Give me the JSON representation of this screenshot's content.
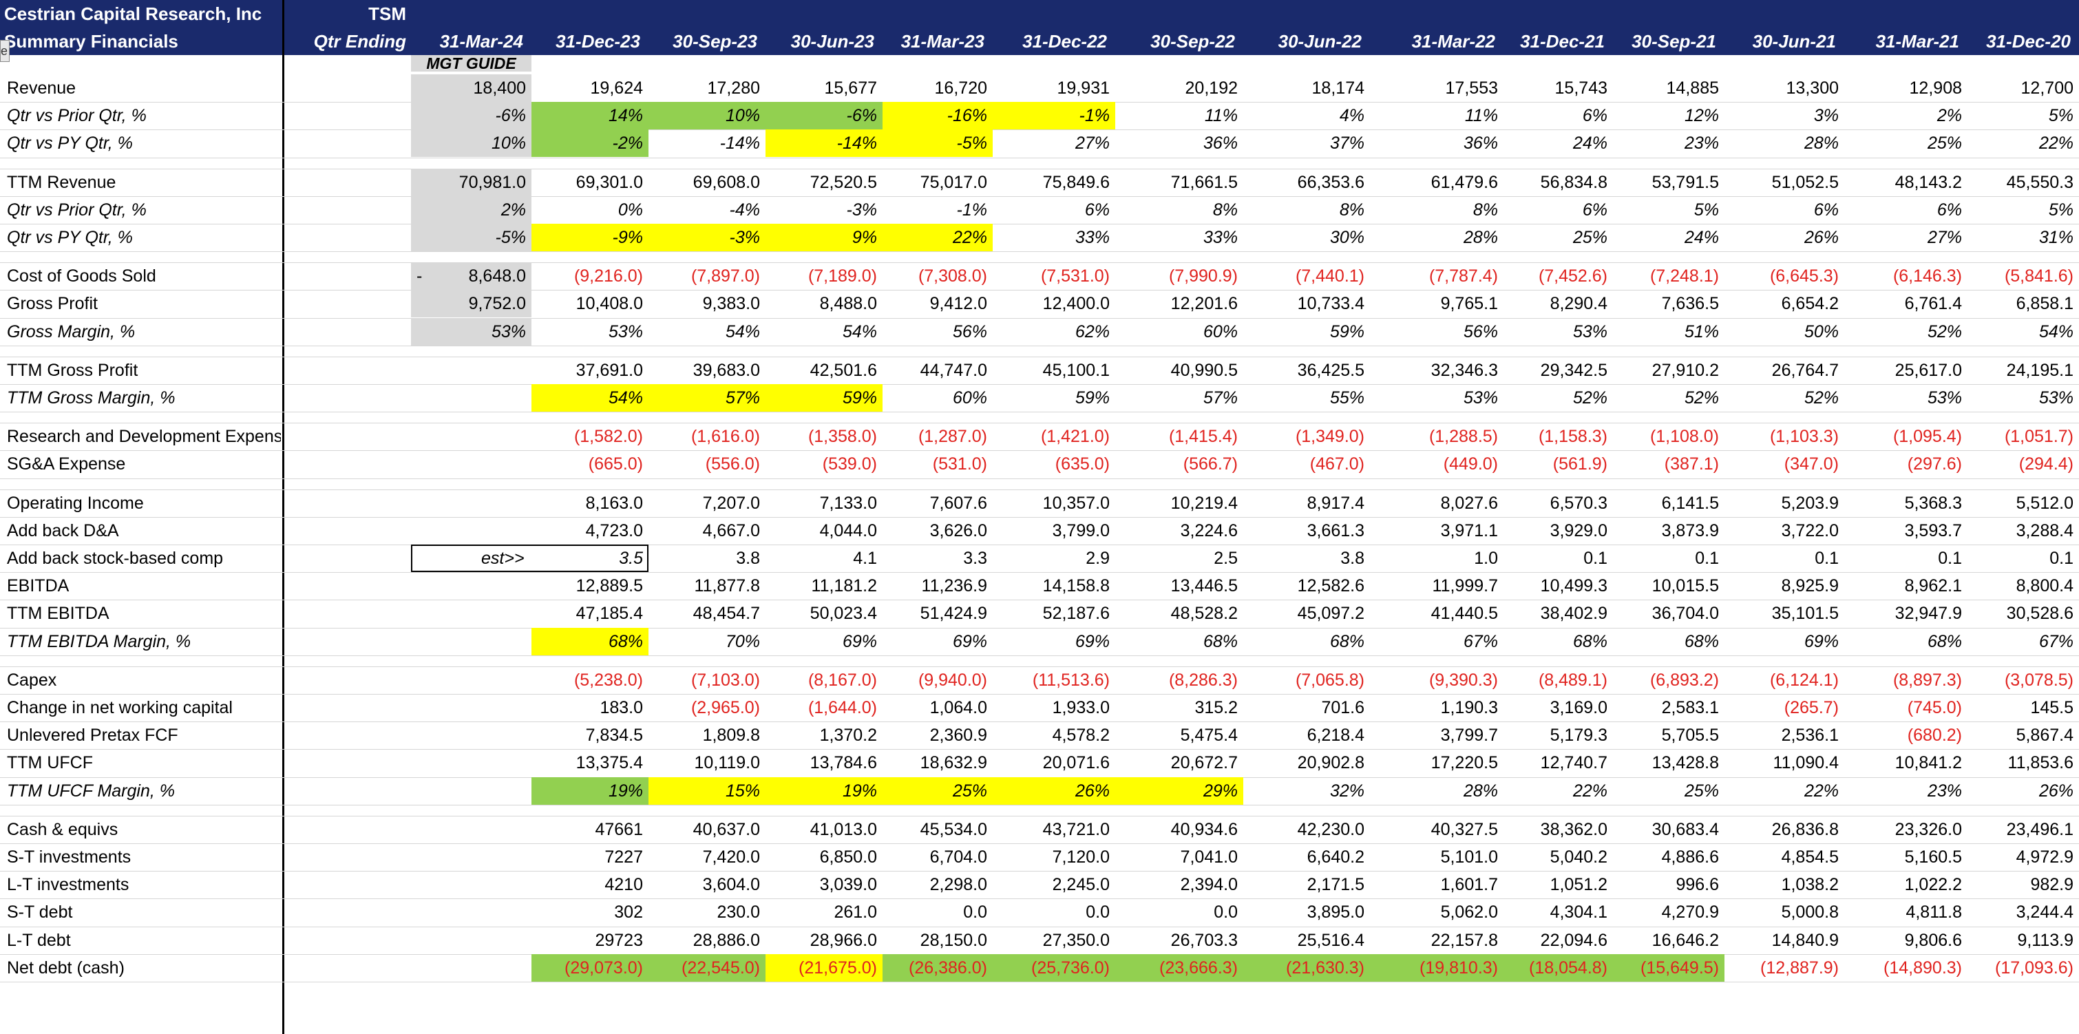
{
  "header": {
    "company": "Cestrian Capital Research, Inc",
    "subtitle": "Summary Financials",
    "ticker": "TSM",
    "period_label": "Qtr Ending",
    "guide_label": "MGT GUIDE",
    "tab_stub": "e",
    "dates": [
      "31-Mar-24",
      "31-Dec-23",
      "30-Sep-23",
      "30-Jun-23",
      "31-Mar-23",
      "31-Dec-22",
      "30-Sep-22",
      "30-Jun-22",
      "31-Mar-22",
      "31-Dec-21",
      "30-Sep-21",
      "30-Jun-21",
      "31-Mar-21",
      "31-Dec-20"
    ]
  },
  "colors": {
    "header_bg": "#1a2a6c",
    "green": "#92d050",
    "yellow": "#ffff00",
    "grey": "#d9d9d9",
    "negative": "#e0231f"
  },
  "rows": [
    {
      "label": "Revenue",
      "italic": false,
      "values": [
        "18,400",
        "19,624",
        "17,280",
        "15,677",
        "16,720",
        "19,931",
        "20,192",
        "18,174",
        "17,553",
        "15,743",
        "14,885",
        "13,300",
        "12,908",
        "12,700"
      ],
      "fills": [
        "g",
        "",
        "",
        "",
        "",
        "",
        "",
        "",
        "",
        "",
        "",
        "",
        "",
        ""
      ]
    },
    {
      "label": "Qtr vs Prior Qtr, %",
      "italic": true,
      "values": [
        "-6%",
        "14%",
        "10%",
        "-6%",
        "-16%",
        "-1%",
        "11%",
        "4%",
        "11%",
        "6%",
        "12%",
        "3%",
        "2%",
        "5%"
      ],
      "fills": [
        "g",
        "G",
        "G",
        "G",
        "Y",
        "Y",
        "",
        "",
        "",
        "",
        "",
        "",
        "",
        ""
      ]
    },
    {
      "label": "Qtr vs PY Qtr, %",
      "italic": true,
      "values": [
        "10%",
        "-2%",
        "-14%",
        "-14%",
        "-5%",
        "27%",
        "36%",
        "37%",
        "36%",
        "24%",
        "23%",
        "28%",
        "25%",
        "22%"
      ],
      "fills": [
        "g",
        "G",
        "",
        "Y",
        "Y",
        "",
        "",
        "",
        "",
        "",
        "",
        "",
        "",
        ""
      ]
    },
    {
      "spacer": true
    },
    {
      "label": "TTM Revenue",
      "italic": false,
      "values": [
        "70,981.0",
        "69,301.0",
        "69,608.0",
        "72,520.5",
        "75,017.0",
        "75,849.6",
        "71,661.5",
        "66,353.6",
        "61,479.6",
        "56,834.8",
        "53,791.5",
        "51,052.5",
        "48,143.2",
        "45,550.3"
      ],
      "fills": [
        "g",
        "",
        "",
        "",
        "",
        "",
        "",
        "",
        "",
        "",
        "",
        "",
        "",
        ""
      ]
    },
    {
      "label": "Qtr vs Prior Qtr, %",
      "italic": true,
      "values": [
        "2%",
        "0%",
        "-4%",
        "-3%",
        "-1%",
        "6%",
        "8%",
        "8%",
        "8%",
        "6%",
        "5%",
        "6%",
        "6%",
        "5%"
      ],
      "fills": [
        "g",
        "",
        "",
        "",
        "",
        "",
        "",
        "",
        "",
        "",
        "",
        "",
        "",
        ""
      ]
    },
    {
      "label": "Qtr vs PY Qtr, %",
      "italic": true,
      "values": [
        "-5%",
        "-9%",
        "-3%",
        "9%",
        "22%",
        "33%",
        "33%",
        "30%",
        "28%",
        "25%",
        "24%",
        "26%",
        "27%",
        "31%"
      ],
      "fills": [
        "g",
        "Y",
        "Y",
        "Y",
        "Y",
        "",
        "",
        "",
        "",
        "",
        "",
        "",
        "",
        ""
      ]
    },
    {
      "spacer": true
    },
    {
      "label": "Cost of Goods Sold",
      "italic": false,
      "prefix": "-",
      "values": [
        "8,648.0",
        "(9,216.0)",
        "(7,897.0)",
        "(7,189.0)",
        "(7,308.0)",
        "(7,531.0)",
        "(7,990.9)",
        "(7,440.1)",
        "(7,787.4)",
        "(7,452.6)",
        "(7,248.1)",
        "(6,645.3)",
        "(6,146.3)",
        "(5,841.6)"
      ],
      "fills": [
        "g",
        "",
        "",
        "",
        "",
        "",
        "",
        "",
        "",
        "",
        "",
        "",
        "",
        ""
      ]
    },
    {
      "label": "Gross Profit",
      "italic": false,
      "values": [
        "9,752.0",
        "10,408.0",
        "9,383.0",
        "8,488.0",
        "9,412.0",
        "12,400.0",
        "12,201.6",
        "10,733.4",
        "9,765.1",
        "8,290.4",
        "7,636.5",
        "6,654.2",
        "6,761.4",
        "6,858.1"
      ],
      "fills": [
        "g",
        "",
        "",
        "",
        "",
        "",
        "",
        "",
        "",
        "",
        "",
        "",
        "",
        ""
      ]
    },
    {
      "label": "Gross Margin, %",
      "italic": true,
      "values": [
        "53%",
        "53%",
        "54%",
        "54%",
        "56%",
        "62%",
        "60%",
        "59%",
        "56%",
        "53%",
        "51%",
        "50%",
        "52%",
        "54%"
      ],
      "fills": [
        "g",
        "",
        "",
        "",
        "",
        "",
        "",
        "",
        "",
        "",
        "",
        "",
        "",
        ""
      ]
    },
    {
      "spacer": true
    },
    {
      "label": "TTM Gross Profit",
      "italic": false,
      "values": [
        "",
        "37,691.0",
        "39,683.0",
        "42,501.6",
        "44,747.0",
        "45,100.1",
        "40,990.5",
        "36,425.5",
        "32,346.3",
        "29,342.5",
        "27,910.2",
        "26,764.7",
        "25,617.0",
        "24,195.1"
      ],
      "fills": [
        "",
        "",
        "",
        "",
        "",
        "",
        "",
        "",
        "",
        "",
        "",
        "",
        "",
        ""
      ]
    },
    {
      "label": "TTM Gross Margin, %",
      "italic": true,
      "values": [
        "",
        "54%",
        "57%",
        "59%",
        "60%",
        "59%",
        "57%",
        "55%",
        "53%",
        "52%",
        "52%",
        "52%",
        "53%",
        "53%"
      ],
      "fills": [
        "",
        "Y",
        "Y",
        "Y",
        "",
        "",
        "",
        "",
        "",
        "",
        "",
        "",
        "",
        ""
      ]
    },
    {
      "spacer": true
    },
    {
      "label": "Research and Development Expense",
      "italic": false,
      "values": [
        "",
        "(1,582.0)",
        "(1,616.0)",
        "(1,358.0)",
        "(1,287.0)",
        "(1,421.0)",
        "(1,415.4)",
        "(1,349.0)",
        "(1,288.5)",
        "(1,158.3)",
        "(1,108.0)",
        "(1,103.3)",
        "(1,095.4)",
        "(1,051.7)"
      ],
      "fills": [
        "",
        "",
        "",
        "",
        "",
        "",
        "",
        "",
        "",
        "",
        "",
        "",
        "",
        ""
      ]
    },
    {
      "label": "SG&A Expense",
      "italic": false,
      "values": [
        "",
        "(665.0)",
        "(556.0)",
        "(539.0)",
        "(531.0)",
        "(635.0)",
        "(566.7)",
        "(467.0)",
        "(449.0)",
        "(561.9)",
        "(387.1)",
        "(347.0)",
        "(297.6)",
        "(294.4)"
      ],
      "fills": [
        "",
        "",
        "",
        "",
        "",
        "",
        "",
        "",
        "",
        "",
        "",
        "",
        "",
        ""
      ]
    },
    {
      "spacer": true
    },
    {
      "label": "Operating Income",
      "italic": false,
      "values": [
        "",
        "8,163.0",
        "7,207.0",
        "7,133.0",
        "7,607.6",
        "10,357.0",
        "10,219.4",
        "8,917.4",
        "8,027.6",
        "6,570.3",
        "6,141.5",
        "5,203.9",
        "5,368.3",
        "5,512.0"
      ],
      "fills": [
        "",
        "",
        "",
        "",
        "",
        "",
        "",
        "",
        "",
        "",
        "",
        "",
        "",
        ""
      ]
    },
    {
      "label": "Add back D&A",
      "italic": false,
      "values": [
        "",
        "4,723.0",
        "4,667.0",
        "4,044.0",
        "3,626.0",
        "3,799.0",
        "3,224.6",
        "3,661.3",
        "3,971.1",
        "3,929.0",
        "3,873.9",
        "3,722.0",
        "3,593.7",
        "3,288.4"
      ],
      "fills": [
        "",
        "",
        "",
        "",
        "",
        "",
        "",
        "",
        "",
        "",
        "",
        "",
        "",
        ""
      ]
    },
    {
      "label": "Add back stock-based comp",
      "italic": false,
      "est": "est>>",
      "values": [
        "",
        "3.5",
        "3.8",
        "4.1",
        "3.3",
        "2.9",
        "2.5",
        "3.8",
        "1.0",
        "0.1",
        "0.1",
        "0.1",
        "0.1",
        "0.1"
      ],
      "fills": [
        "",
        "",
        "",
        "",
        "",
        "",
        "",
        "",
        "",
        "",
        "",
        "",
        "",
        ""
      ]
    },
    {
      "label": "EBITDA",
      "italic": false,
      "values": [
        "",
        "12,889.5",
        "11,877.8",
        "11,181.2",
        "11,236.9",
        "14,158.8",
        "13,446.5",
        "12,582.6",
        "11,999.7",
        "10,499.3",
        "10,015.5",
        "8,925.9",
        "8,962.1",
        "8,800.4"
      ],
      "fills": [
        "",
        "",
        "",
        "",
        "",
        "",
        "",
        "",
        "",
        "",
        "",
        "",
        "",
        ""
      ]
    },
    {
      "label": "TTM EBITDA",
      "italic": false,
      "values": [
        "",
        "47,185.4",
        "48,454.7",
        "50,023.4",
        "51,424.9",
        "52,187.6",
        "48,528.2",
        "45,097.2",
        "41,440.5",
        "38,402.9",
        "36,704.0",
        "35,101.5",
        "32,947.9",
        "30,528.6"
      ],
      "fills": [
        "",
        "",
        "",
        "",
        "",
        "",
        "",
        "",
        "",
        "",
        "",
        "",
        "",
        ""
      ]
    },
    {
      "label": "TTM EBITDA Margin, %",
      "italic": true,
      "values": [
        "",
        "68%",
        "70%",
        "69%",
        "69%",
        "69%",
        "68%",
        "68%",
        "67%",
        "68%",
        "68%",
        "69%",
        "68%",
        "67%"
      ],
      "fills": [
        "",
        "Y",
        "",
        "",
        "",
        "",
        "",
        "",
        "",
        "",
        "",
        "",
        "",
        ""
      ]
    },
    {
      "spacer": true
    },
    {
      "label": "Capex",
      "italic": false,
      "values": [
        "",
        "(5,238.0)",
        "(7,103.0)",
        "(8,167.0)",
        "(9,940.0)",
        "(11,513.6)",
        "(8,286.3)",
        "(7,065.8)",
        "(9,390.3)",
        "(8,489.1)",
        "(6,893.2)",
        "(6,124.1)",
        "(8,897.3)",
        "(3,078.5)"
      ],
      "fills": [
        "",
        "",
        "",
        "",
        "",
        "",
        "",
        "",
        "",
        "",
        "",
        "",
        "",
        ""
      ]
    },
    {
      "label": "Change in net working capital",
      "italic": false,
      "values": [
        "",
        "183.0",
        "(2,965.0)",
        "(1,644.0)",
        "1,064.0",
        "1,933.0",
        "315.2",
        "701.6",
        "1,190.3",
        "3,169.0",
        "2,583.1",
        "(265.7)",
        "(745.0)",
        "145.5"
      ],
      "fills": [
        "",
        "",
        "",
        "",
        "",
        "",
        "",
        "",
        "",
        "",
        "",
        "",
        "",
        ""
      ]
    },
    {
      "label": "Unlevered Pretax FCF",
      "italic": false,
      "values": [
        "",
        "7,834.5",
        "1,809.8",
        "1,370.2",
        "2,360.9",
        "4,578.2",
        "5,475.4",
        "6,218.4",
        "3,799.7",
        "5,179.3",
        "5,705.5",
        "2,536.1",
        "(680.2)",
        "5,867.4"
      ],
      "fills": [
        "",
        "",
        "",
        "",
        "",
        "",
        "",
        "",
        "",
        "",
        "",
        "",
        "",
        ""
      ]
    },
    {
      "label": "TTM UFCF",
      "italic": false,
      "values": [
        "",
        "13,375.4",
        "10,119.0",
        "13,784.6",
        "18,632.9",
        "20,071.6",
        "20,672.7",
        "20,902.8",
        "17,220.5",
        "12,740.7",
        "13,428.8",
        "11,090.4",
        "10,841.2",
        "11,853.6"
      ],
      "fills": [
        "",
        "",
        "",
        "",
        "",
        "",
        "",
        "",
        "",
        "",
        "",
        "",
        "",
        ""
      ]
    },
    {
      "label": "TTM UFCF Margin, %",
      "italic": true,
      "values": [
        "",
        "19%",
        "15%",
        "19%",
        "25%",
        "26%",
        "29%",
        "32%",
        "28%",
        "22%",
        "25%",
        "22%",
        "23%",
        "26%"
      ],
      "fills": [
        "",
        "G",
        "Y",
        "Y",
        "Y",
        "Y",
        "Y",
        "",
        "",
        "",
        "",
        "",
        "",
        ""
      ]
    },
    {
      "spacer": true
    },
    {
      "label": "Cash & equivs",
      "italic": false,
      "values": [
        "",
        "47661",
        "40,637.0",
        "41,013.0",
        "45,534.0",
        "43,721.0",
        "40,934.6",
        "42,230.0",
        "40,327.5",
        "38,362.0",
        "30,683.4",
        "26,836.8",
        "23,326.0",
        "23,496.1"
      ],
      "fills": [
        "",
        "",
        "",
        "",
        "",
        "",
        "",
        "",
        "",
        "",
        "",
        "",
        "",
        ""
      ]
    },
    {
      "label": "S-T investments",
      "italic": false,
      "values": [
        "",
        "7227",
        "7,420.0",
        "6,850.0",
        "6,704.0",
        "7,120.0",
        "7,041.0",
        "6,640.2",
        "5,101.0",
        "5,040.2",
        "4,886.6",
        "4,854.5",
        "5,160.5",
        "4,972.9"
      ],
      "fills": [
        "",
        "",
        "",
        "",
        "",
        "",
        "",
        "",
        "",
        "",
        "",
        "",
        "",
        ""
      ]
    },
    {
      "label": "L-T investments",
      "italic": false,
      "values": [
        "",
        "4210",
        "3,604.0",
        "3,039.0",
        "2,298.0",
        "2,245.0",
        "2,394.0",
        "2,171.5",
        "1,601.7",
        "1,051.2",
        "996.6",
        "1,038.2",
        "1,022.2",
        "982.9"
      ],
      "fills": [
        "",
        "",
        "",
        "",
        "",
        "",
        "",
        "",
        "",
        "",
        "",
        "",
        "",
        ""
      ]
    },
    {
      "label": "S-T debt",
      "italic": false,
      "values": [
        "",
        "302",
        "230.0",
        "261.0",
        "0.0",
        "0.0",
        "0.0",
        "3,895.0",
        "5,062.0",
        "4,304.1",
        "4,270.9",
        "5,000.8",
        "4,811.8",
        "3,244.4"
      ],
      "fills": [
        "",
        "",
        "",
        "",
        "",
        "",
        "",
        "",
        "",
        "",
        "",
        "",
        "",
        ""
      ]
    },
    {
      "label": "L-T debt",
      "italic": false,
      "values": [
        "",
        "29723",
        "28,886.0",
        "28,966.0",
        "28,150.0",
        "27,350.0",
        "26,703.3",
        "25,516.4",
        "22,157.8",
        "22,094.6",
        "16,646.2",
        "14,840.9",
        "9,806.6",
        "9,113.9"
      ],
      "fills": [
        "",
        "",
        "",
        "",
        "",
        "",
        "",
        "",
        "",
        "",
        "",
        "",
        "",
        ""
      ]
    },
    {
      "label": "Net debt (cash)",
      "italic": false,
      "values": [
        "",
        "(29,073.0)",
        "(22,545.0)",
        "(21,675.0)",
        "(26,386.0)",
        "(25,736.0)",
        "(23,666.3)",
        "(21,630.3)",
        "(19,810.3)",
        "(18,054.8)",
        "(15,649.5)",
        "(12,887.9)",
        "(14,890.3)",
        "(17,093.6)"
      ],
      "fills": [
        "",
        "G",
        "G",
        "Y",
        "G",
        "G",
        "G",
        "G",
        "G",
        "G",
        "G",
        "",
        "",
        ""
      ]
    }
  ]
}
